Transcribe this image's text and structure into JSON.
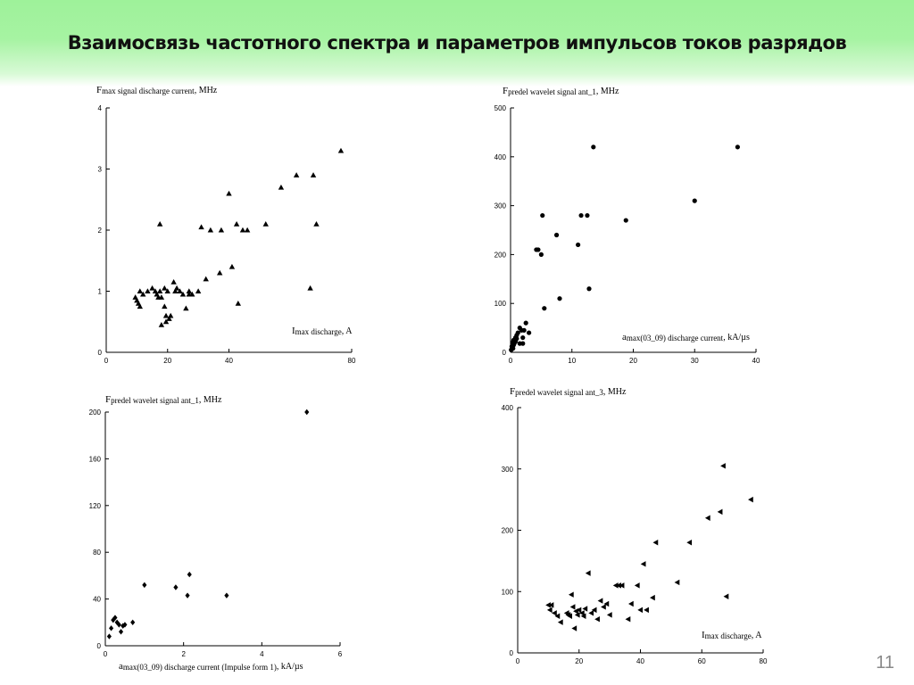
{
  "slide": {
    "title": "Взаимосвязь частотного спектра и параметров импульсов токов разрядов",
    "page_number": "11"
  },
  "chart_data": [
    {
      "type": "scatter",
      "marker": "triangle-up",
      "ylabel_main": "F",
      "ylabel_sub": "max signal discharge current",
      "ylabel_tail": ", MHz",
      "xlabel_main": "I",
      "xlabel_sub": "max discharge",
      "xlabel_tail": ", A",
      "xlim": [
        0,
        80
      ],
      "ylim": [
        0,
        4
      ],
      "xticks": [
        "0",
        "20",
        "40",
        "80"
      ],
      "xtick_values": [
        0,
        20,
        40,
        80
      ],
      "yticks": [
        "0",
        "1",
        "2",
        "3",
        "4"
      ],
      "ytick_values": [
        0,
        1,
        2,
        3,
        4
      ],
      "points": [
        [
          9.5,
          0.9
        ],
        [
          10,
          0.85
        ],
        [
          10.5,
          0.8
        ],
        [
          11,
          0.75
        ],
        [
          11,
          1.0
        ],
        [
          12,
          0.95
        ],
        [
          13.5,
          1.0
        ],
        [
          15,
          1.05
        ],
        [
          16,
          1.0
        ],
        [
          16.5,
          0.95
        ],
        [
          17,
          0.9
        ],
        [
          17.5,
          1.0
        ],
        [
          17.5,
          2.1
        ],
        [
          18,
          0.9
        ],
        [
          18,
          0.45
        ],
        [
          19,
          0.75
        ],
        [
          19,
          1.05
        ],
        [
          19.5,
          0.6
        ],
        [
          19.5,
          0.5
        ],
        [
          20,
          1.0
        ],
        [
          20.5,
          0.55
        ],
        [
          21,
          0.6
        ],
        [
          22,
          1.15
        ],
        [
          22.5,
          1.0
        ],
        [
          23,
          1.05
        ],
        [
          24,
          1.0
        ],
        [
          25,
          0.95
        ],
        [
          26,
          0.72
        ],
        [
          27,
          0.95
        ],
        [
          27,
          1.0
        ],
        [
          28,
          0.95
        ],
        [
          30,
          1.0
        ],
        [
          31,
          2.05
        ],
        [
          32.5,
          1.2
        ],
        [
          34,
          2.0
        ],
        [
          37,
          1.3
        ],
        [
          37.5,
          2.0
        ],
        [
          40,
          2.6
        ],
        [
          41,
          1.4
        ],
        [
          42.5,
          2.1
        ],
        [
          43,
          0.8
        ],
        [
          44.5,
          2.0
        ],
        [
          46,
          2.0
        ],
        [
          52,
          2.1
        ],
        [
          57,
          2.7
        ],
        [
          62,
          2.9
        ],
        [
          66.5,
          1.05
        ],
        [
          67.5,
          2.9
        ],
        [
          68.5,
          2.1
        ],
        [
          76.5,
          3.3
        ]
      ]
    },
    {
      "type": "scatter",
      "marker": "circle",
      "ylabel_main": "F",
      "ylabel_sub": "predel wavelet signal ant_1",
      "ylabel_tail": ", MHz",
      "xlabel_main": "a",
      "xlabel_sub": "max(03_09) discharge current",
      "xlabel_tail": ", kA/µs",
      "xlim": [
        0,
        40
      ],
      "ylim": [
        0,
        500
      ],
      "xticks": [
        "0",
        "10",
        "20",
        "30",
        "40"
      ],
      "xtick_values": [
        0,
        10,
        20,
        30,
        40
      ],
      "yticks": [
        "0",
        "100",
        "200",
        "300",
        "400",
        "500"
      ],
      "ytick_values": [
        0,
        100,
        200,
        300,
        400,
        500
      ],
      "points": [
        [
          0.1,
          5
        ],
        [
          0.2,
          12
        ],
        [
          0.3,
          20
        ],
        [
          0.4,
          8
        ],
        [
          0.5,
          25
        ],
        [
          0.5,
          15
        ],
        [
          0.6,
          18
        ],
        [
          0.8,
          30
        ],
        [
          0.8,
          22
        ],
        [
          1.0,
          35
        ],
        [
          1.0,
          28
        ],
        [
          1.2,
          40
        ],
        [
          1.5,
          50
        ],
        [
          1.5,
          18
        ],
        [
          1.8,
          45
        ],
        [
          2.0,
          30
        ],
        [
          2.2,
          45
        ],
        [
          2.5,
          60
        ],
        [
          2.0,
          18
        ],
        [
          3.0,
          40
        ],
        [
          4.2,
          210
        ],
        [
          4.5,
          210
        ],
        [
          5.0,
          200
        ],
        [
          5.2,
          280
        ],
        [
          5.5,
          90
        ],
        [
          7.5,
          240
        ],
        [
          8.0,
          110
        ],
        [
          11.0,
          220
        ],
        [
          11.5,
          280
        ],
        [
          12.5,
          280
        ],
        [
          12.8,
          130
        ],
        [
          13.5,
          420
        ],
        [
          18.8,
          270
        ],
        [
          30.0,
          310
        ],
        [
          37.0,
          420
        ]
      ]
    },
    {
      "type": "scatter",
      "marker": "diamond",
      "ylabel_main": "F",
      "ylabel_sub": "predel wavelet signal ant_1",
      "ylabel_tail": ", MHz",
      "xlabel_main": "a",
      "xlabel_sub": "max(03_09) discharge current (Impulse form 1)",
      "xlabel_tail": ", kA/µs",
      "xlim": [
        0,
        6
      ],
      "ylim": [
        0,
        200
      ],
      "xticks": [
        "0",
        "2",
        "4",
        "6"
      ],
      "xtick_values": [
        0,
        2,
        4,
        6
      ],
      "yticks": [
        "0",
        "40",
        "80",
        "120",
        "160",
        "200"
      ],
      "ytick_values": [
        0,
        40,
        80,
        120,
        160,
        200
      ],
      "points": [
        [
          0.1,
          8
        ],
        [
          0.15,
          15
        ],
        [
          0.2,
          22
        ],
        [
          0.25,
          24
        ],
        [
          0.3,
          20
        ],
        [
          0.35,
          18
        ],
        [
          0.4,
          12
        ],
        [
          0.45,
          17
        ],
        [
          0.5,
          18
        ],
        [
          0.7,
          20
        ],
        [
          1.0,
          52
        ],
        [
          1.8,
          50
        ],
        [
          2.1,
          43
        ],
        [
          2.15,
          61
        ],
        [
          3.1,
          43
        ],
        [
          5.15,
          200
        ]
      ]
    },
    {
      "type": "scatter",
      "marker": "triangle-left",
      "ylabel_main": "F",
      "ylabel_sub": "predel wavelet signal ant_3",
      "ylabel_tail": ", MHz",
      "xlabel_main": "I",
      "xlabel_sub": "max discharge",
      "xlabel_tail": ", A",
      "xlim": [
        0,
        80
      ],
      "ylim": [
        0,
        400
      ],
      "xticks": [
        "0",
        "20",
        "40",
        "60",
        "80"
      ],
      "xtick_values": [
        0,
        20,
        40,
        60,
        80
      ],
      "yticks": [
        "0",
        "100",
        "200",
        "300",
        "400"
      ],
      "ytick_values": [
        0,
        100,
        200,
        300,
        400
      ],
      "points": [
        [
          10,
          78
        ],
        [
          10.5,
          70
        ],
        [
          11,
          78
        ],
        [
          12,
          65
        ],
        [
          13,
          60
        ],
        [
          14,
          50
        ],
        [
          16,
          65
        ],
        [
          16.5,
          62
        ],
        [
          17,
          60
        ],
        [
          17.5,
          95
        ],
        [
          18,
          75
        ],
        [
          18.5,
          40
        ],
        [
          19,
          68
        ],
        [
          19.5,
          62
        ],
        [
          20,
          70
        ],
        [
          21,
          65
        ],
        [
          21.5,
          60
        ],
        [
          22,
          72
        ],
        [
          23,
          130
        ],
        [
          24,
          65
        ],
        [
          25,
          70
        ],
        [
          26,
          55
        ],
        [
          27,
          85
        ],
        [
          28,
          75
        ],
        [
          29,
          80
        ],
        [
          30,
          62
        ],
        [
          32,
          110
        ],
        [
          33,
          110
        ],
        [
          34,
          110
        ],
        [
          36,
          55
        ],
        [
          37,
          80
        ],
        [
          39,
          110
        ],
        [
          40,
          70
        ],
        [
          41,
          145
        ],
        [
          42,
          70
        ],
        [
          44,
          90
        ],
        [
          45,
          180
        ],
        [
          52,
          115
        ],
        [
          56,
          180
        ],
        [
          62,
          220
        ],
        [
          66,
          230
        ],
        [
          67,
          305
        ],
        [
          68,
          92
        ],
        [
          76,
          250
        ]
      ]
    }
  ]
}
